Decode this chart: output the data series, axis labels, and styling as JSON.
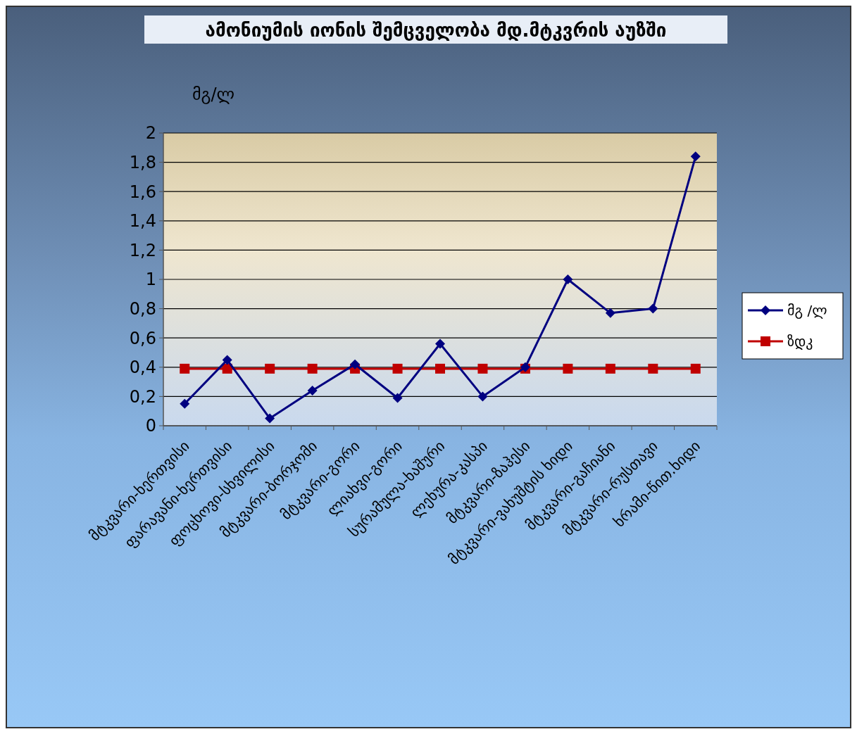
{
  "chart_data": {
    "type": "line",
    "title": "ამონიუმის იონის შემცველობა მდ.მტკვრის აუზში",
    "ylabel": "მგ/ლ",
    "categories": [
      "მტკვარი-ხერთვისი",
      "ფარავანი-ხერთვისი",
      "ფოცხოვი-სხვილისი",
      "მტკვარი-ბორჯომი",
      "მტკვარი-გორი",
      "ლიახვი-გორი",
      "სურამულა-ხაშური",
      "ლეხურა-კასპი",
      "მტკვარი-ზაჰესი",
      "მტკვარი-ვახუშტის ხიდი",
      "მტკვარი-გაჩიანი",
      "მტკვარი-რუსთავი",
      "ხრამი-წით.ხიდი"
    ],
    "series": [
      {
        "name": "მგ /ლ",
        "color": "#000080",
        "marker": "diamond",
        "values": [
          0.15,
          0.45,
          0.05,
          0.24,
          0.42,
          0.19,
          0.56,
          0.2,
          0.4,
          1.0,
          0.77,
          0.8,
          1.84
        ]
      },
      {
        "name": "ზდკ",
        "color": "#c00000",
        "marker": "square",
        "values": [
          0.39,
          0.39,
          0.39,
          0.39,
          0.39,
          0.39,
          0.39,
          0.39,
          0.39,
          0.39,
          0.39,
          0.39,
          0.39
        ]
      }
    ],
    "ylim": [
      0,
      2
    ],
    "yticks": [
      {
        "value": 0,
        "label": "0"
      },
      {
        "value": 0.2,
        "label": "0,2"
      },
      {
        "value": 0.4,
        "label": "0,4"
      },
      {
        "value": 0.6,
        "label": "0,6"
      },
      {
        "value": 0.8,
        "label": "0,8"
      },
      {
        "value": 1,
        "label": "1"
      },
      {
        "value": 1.2,
        "label": "1,2"
      },
      {
        "value": 1.4,
        "label": "1,4"
      },
      {
        "value": 1.6,
        "label": "1,6"
      },
      {
        "value": 1.8,
        "label": "1,8"
      },
      {
        "value": 2,
        "label": "2"
      }
    ],
    "grid": "y",
    "legend": "right"
  }
}
